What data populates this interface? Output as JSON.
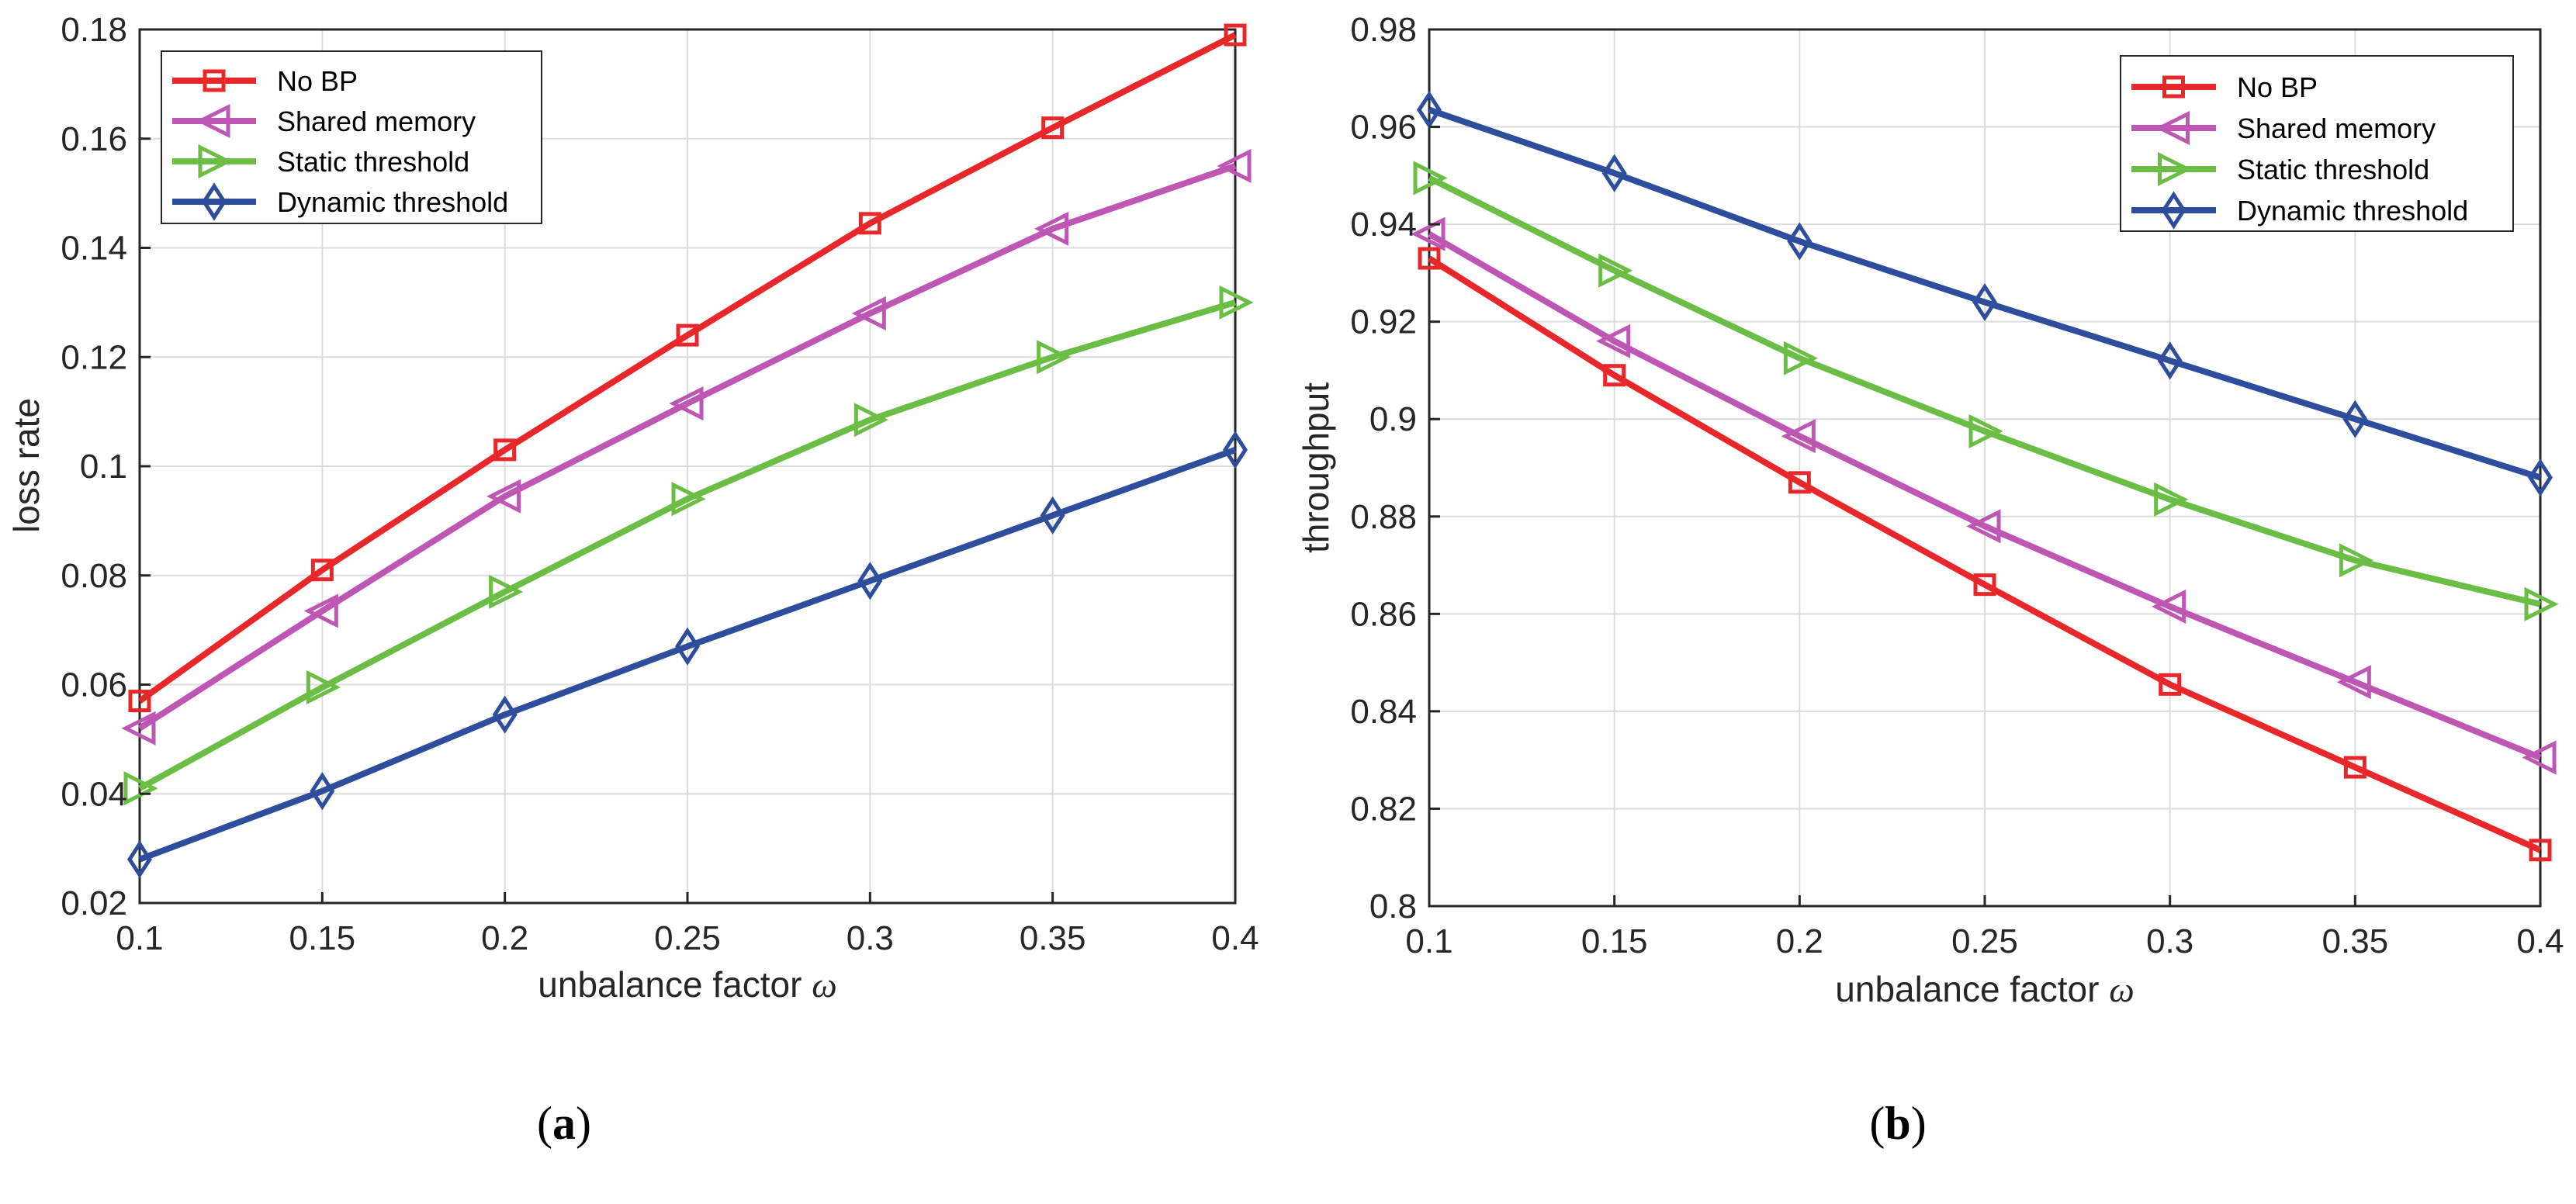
{
  "chart_data": [
    {
      "type": "line",
      "caption_letter": "a",
      "xlabel": "unbalance factor",
      "xlabel_symbol": "ω",
      "ylabel": "loss rate",
      "x": [
        0.1,
        0.15,
        0.2,
        0.25,
        0.3,
        0.35,
        0.4
      ],
      "xlim": [
        0.1,
        0.4
      ],
      "ylim": [
        0.02,
        0.18
      ],
      "xticks": [
        "0.1",
        "0.15",
        "0.2",
        "0.25",
        "0.3",
        "0.35",
        "0.4"
      ],
      "yticks": [
        "0.02",
        "0.04",
        "0.06",
        "0.08",
        "0.1",
        "0.12",
        "0.14",
        "0.16",
        "0.18"
      ],
      "grid": true,
      "legend_position": "top-left",
      "series": [
        {
          "name": "No BP",
          "color": "#e8272b",
          "marker": "square",
          "values": [
            0.057,
            0.081,
            0.103,
            0.124,
            0.1445,
            0.162,
            0.179
          ]
        },
        {
          "name": "Shared memory",
          "color": "#bd57b3",
          "marker": "triangle-left",
          "values": [
            0.052,
            0.0735,
            0.0945,
            0.1115,
            0.128,
            0.1435,
            0.155
          ]
        },
        {
          "name": "Static threshold",
          "color": "#6cbd45",
          "marker": "triangle-right",
          "values": [
            0.041,
            0.0595,
            0.077,
            0.094,
            0.1085,
            0.12,
            0.13
          ]
        },
        {
          "name": "Dynamic threshold",
          "color": "#2f4d9d",
          "marker": "diamond",
          "values": [
            0.028,
            0.0405,
            0.0545,
            0.067,
            0.079,
            0.091,
            0.103
          ]
        }
      ]
    },
    {
      "type": "line",
      "caption_letter": "b",
      "xlabel": "unbalance factor",
      "xlabel_symbol": "ω",
      "ylabel": "throughput",
      "x": [
        0.1,
        0.15,
        0.2,
        0.25,
        0.3,
        0.35,
        0.4
      ],
      "xlim": [
        0.1,
        0.4
      ],
      "ylim": [
        0.8,
        0.98
      ],
      "xticks": [
        "0.1",
        "0.15",
        "0.2",
        "0.25",
        "0.3",
        "0.35",
        "0.4"
      ],
      "yticks": [
        "0.8",
        "0.82",
        "0.84",
        "0.86",
        "0.88",
        "0.9",
        "0.92",
        "0.94",
        "0.96",
        "0.98"
      ],
      "grid": true,
      "legend_position": "top-right",
      "series": [
        {
          "name": "No BP",
          "color": "#e8272b",
          "marker": "square",
          "values": [
            0.933,
            0.909,
            0.887,
            0.866,
            0.8455,
            0.8285,
            0.8115
          ]
        },
        {
          "name": "Shared memory",
          "color": "#bd57b3",
          "marker": "triangle-left",
          "values": [
            0.938,
            0.916,
            0.8965,
            0.878,
            0.8615,
            0.846,
            0.8305
          ]
        },
        {
          "name": "Static threshold",
          "color": "#6cbd45",
          "marker": "triangle-right",
          "values": [
            0.9495,
            0.9305,
            0.9125,
            0.8975,
            0.8835,
            0.871,
            0.862
          ]
        },
        {
          "name": "Dynamic threshold",
          "color": "#2f4d9d",
          "marker": "diamond",
          "values": [
            0.9635,
            0.9505,
            0.9365,
            0.924,
            0.912,
            0.9,
            0.888
          ]
        }
      ]
    }
  ]
}
